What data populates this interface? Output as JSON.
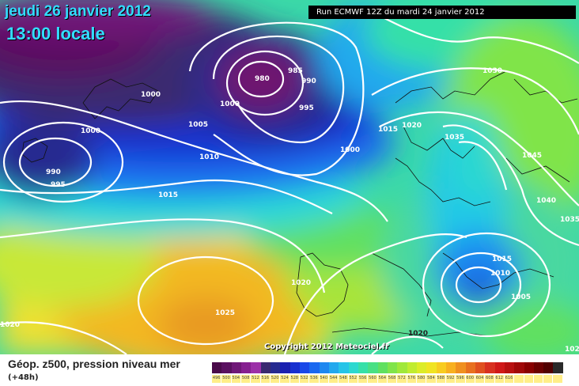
{
  "header": {
    "date_line": "jeudi 26 janvier 2012",
    "time_line": "13:00 locale",
    "run_info": "Run ECMWF 12Z du mardi 24 janvier 2012"
  },
  "map": {
    "copyright": "Copyright 2012 Meteociel.fr",
    "pressure_labels": [
      {
        "text": "985"
      },
      {
        "text": "990"
      },
      {
        "text": "980"
      },
      {
        "text": "995"
      },
      {
        "text": "1000"
      },
      {
        "text": "1000"
      },
      {
        "text": "1000"
      },
      {
        "text": "1000"
      },
      {
        "text": "1005"
      },
      {
        "text": "1010"
      },
      {
        "text": "990"
      },
      {
        "text": "995"
      },
      {
        "text": "1015"
      },
      {
        "text": "1020"
      },
      {
        "text": "1025"
      },
      {
        "text": "1020"
      },
      {
        "text": "1035"
      },
      {
        "text": "1045"
      },
      {
        "text": "1040"
      },
      {
        "text": "1035"
      },
      {
        "text": "1030"
      },
      {
        "text": "1015"
      },
      {
        "text": "1010"
      },
      {
        "text": "1005"
      },
      {
        "text": "1020"
      },
      {
        "text": "1015"
      },
      {
        "text": "1020"
      },
      {
        "text": "1020"
      }
    ]
  },
  "footer": {
    "title": "Géop. z500, pression niveau mer",
    "subtitle": "(+48h)",
    "scale_colors": [
      "#4a0a4a",
      "#5a1060",
      "#701878",
      "#862090",
      "#9c30a8",
      "#3a2a70",
      "#262a90",
      "#1a20b0",
      "#1830d0",
      "#1a48e8",
      "#1a68f0",
      "#1e88f0",
      "#22a8ee",
      "#26c4e8",
      "#2cd8d0",
      "#36e0a8",
      "#48e084",
      "#60e060",
      "#80e44a",
      "#a0e83a",
      "#c0ec30",
      "#dcec28",
      "#f0e422",
      "#f8cc20",
      "#f8b020",
      "#f09020",
      "#e87020",
      "#e05020",
      "#d83020",
      "#d01818",
      "#b81010",
      "#a00808",
      "#880000",
      "#6a0000",
      "#500000",
      "#2a2a2a"
    ],
    "scale_labels": [
      "496",
      "500",
      "504",
      "508",
      "512",
      "516",
      "520",
      "524",
      "528",
      "532",
      "536",
      "540",
      "544",
      "548",
      "552",
      "556",
      "560",
      "564",
      "568",
      "572",
      "576",
      "580",
      "584",
      "588",
      "592",
      "596",
      "600",
      "604",
      "608",
      "612",
      "616",
      "",
      "",
      "",
      "",
      ""
    ]
  }
}
